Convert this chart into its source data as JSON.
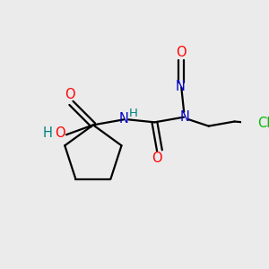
{
  "bg_color": "#ebebeb",
  "bond_color": "#000000",
  "colors": {
    "O": "#ff0000",
    "N": "#0000cc",
    "Cl": "#00bb00",
    "H": "#008080",
    "C": "#000000"
  }
}
